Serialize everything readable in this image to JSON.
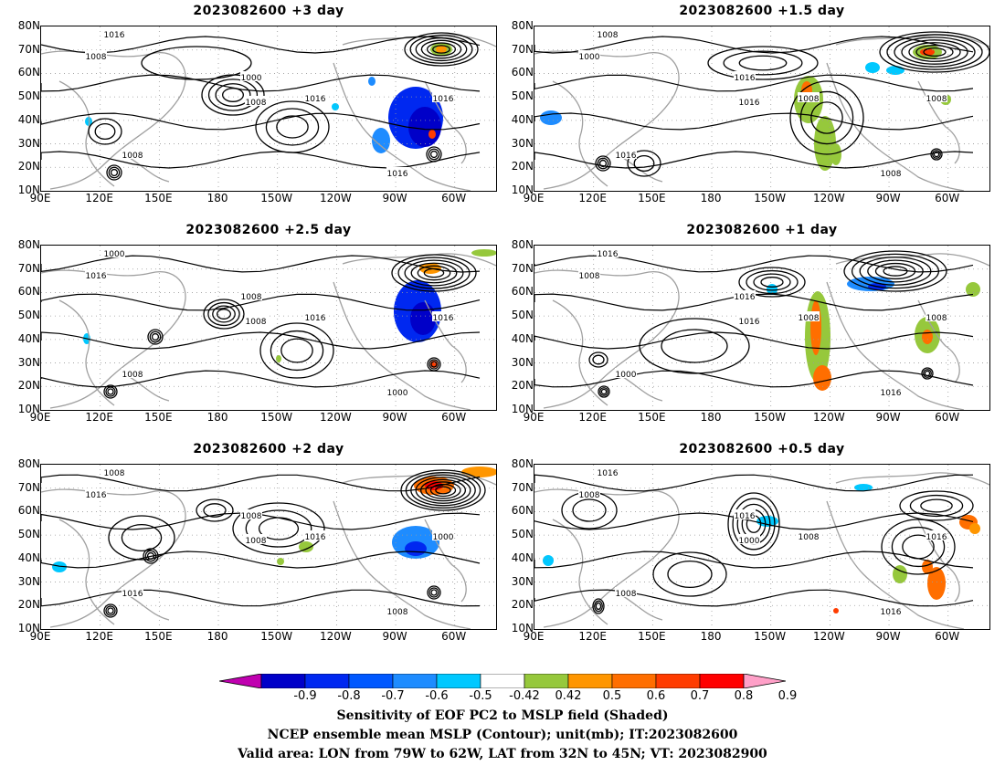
{
  "panels": [
    {
      "title": "2023082600  +3 day"
    },
    {
      "title": "2023082600  +1.5 day"
    },
    {
      "title": "2023082600  +2.5 day"
    },
    {
      "title": "2023082600  +1 day"
    },
    {
      "title": "2023082600  +2 day"
    },
    {
      "title": "2023082600  +0.5 day"
    }
  ],
  "axes": {
    "lat_labels": [
      "80N",
      "70N",
      "60N",
      "50N",
      "40N",
      "30N",
      "20N",
      "10N"
    ],
    "lon_labels": [
      "90E",
      "120E",
      "150E",
      "180",
      "150W",
      "120W",
      "90W",
      "60W"
    ],
    "lat_range": [
      10,
      80
    ],
    "lon_range_east": [
      90,
      321
    ]
  },
  "contour_labels": [
    "1016",
    "1008",
    "1000",
    "1016",
    "1008",
    "1016",
    "1008"
  ],
  "colorbar": {
    "ticks": [
      "-0.9",
      "-0.8",
      "-0.7",
      "-0.6",
      "-0.5",
      "-0.42",
      "0.42",
      "0.5",
      "0.6",
      "0.7",
      "0.8",
      "0.9"
    ],
    "colors": [
      "#c000b0",
      "#0000c8",
      "#0028f0",
      "#0058ff",
      "#1e8cff",
      "#00c8ff",
      "#ffffff",
      "#96c83c",
      "#ff9600",
      "#ff6e00",
      "#ff3c00",
      "#ff0000",
      "#ffa0c8"
    ]
  },
  "captions": {
    "line1": "Sensitivity of EOF PC2 to MSLP field (Shaded)",
    "line2": "NCEP ensemble mean MSLP (Contour); unit(mb); IT:2023082600",
    "line3": "Valid area: LON from 79W to 62W, LAT from 32N to 45N; VT: 2023082900"
  },
  "colors": {
    "contour": "#000000",
    "coast": "#a0a0a0",
    "grid": "#9a9a9a"
  }
}
